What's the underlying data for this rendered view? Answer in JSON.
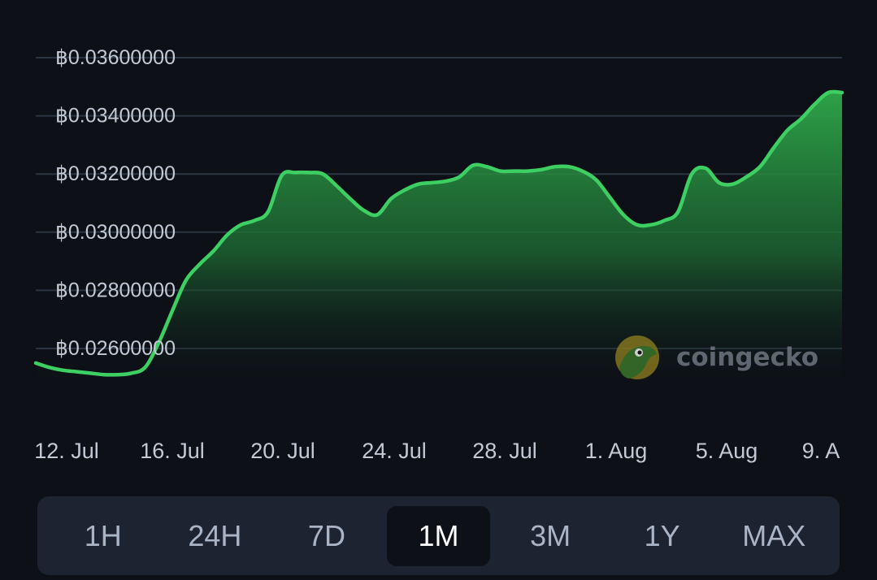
{
  "colors": {
    "background": "#0d1117",
    "line": "#3ecf63",
    "grid": "#2a3442",
    "tick_text": "#c3cad6",
    "range_bar_bg": "#1d2330",
    "range_active_bg": "#0d1117"
  },
  "watermark": {
    "text": "coingecko",
    "icon": "gecko-logo-icon"
  },
  "chart_data": {
    "type": "area",
    "ylim": [
      0.0248,
      0.0367
    ],
    "y_ticks": [
      0.026,
      0.028,
      0.03,
      0.032,
      0.034,
      0.036
    ],
    "y_tick_labels": [
      "฿0.02600000",
      "฿0.02800000",
      "฿0.03000000",
      "฿0.03200000",
      "฿0.03400000",
      "฿0.03600000"
    ],
    "x_tick_labels": [
      "12. Jul",
      "16. Jul",
      "20. Jul",
      "24. Jul",
      "28. Jul",
      "1. Aug",
      "5. Aug",
      "9. A"
    ],
    "grid": true,
    "x": [
      0,
      0.5,
      1,
      1.5,
      2,
      2.5,
      3,
      3.5,
      4,
      4.5,
      5,
      5.5,
      6,
      6.5,
      7,
      7.5,
      8,
      8.5,
      9,
      9.5,
      10,
      10.5,
      11,
      11.5,
      12,
      12.5,
      13,
      13.5,
      14,
      14.5,
      15,
      15.5,
      16,
      16.5,
      17,
      17.5,
      18,
      18.5,
      19,
      19.5,
      20,
      20.5,
      21,
      21.5,
      22,
      22.5,
      23,
      23.5,
      24,
      24.5,
      25,
      25.5,
      26,
      26.5,
      27,
      27.5,
      28,
      28.5,
      29,
      29.5
    ],
    "values": [
      0.0255,
      0.02535,
      0.02525,
      0.0252,
      0.02515,
      0.0251,
      0.0251,
      0.02515,
      0.02535,
      0.0262,
      0.0273,
      0.02835,
      0.0289,
      0.02935,
      0.0299,
      0.03025,
      0.0304,
      0.0307,
      0.03195,
      0.03205,
      0.03205,
      0.032,
      0.0316,
      0.03115,
      0.03075,
      0.0306,
      0.03115,
      0.03145,
      0.03165,
      0.0317,
      0.03175,
      0.0319,
      0.0323,
      0.03225,
      0.0321,
      0.0321,
      0.0321,
      0.03215,
      0.03225,
      0.03225,
      0.0321,
      0.0318,
      0.0312,
      0.0306,
      0.03025,
      0.03025,
      0.0304,
      0.0307,
      0.032,
      0.0322,
      0.0317,
      0.03165,
      0.0319,
      0.03225,
      0.0329,
      0.0335,
      0.0339,
      0.0344,
      0.0348,
      0.0348
    ]
  },
  "range_selector": {
    "options": [
      "1H",
      "24H",
      "7D",
      "1M",
      "3M",
      "1Y",
      "MAX"
    ],
    "active": "1M"
  }
}
